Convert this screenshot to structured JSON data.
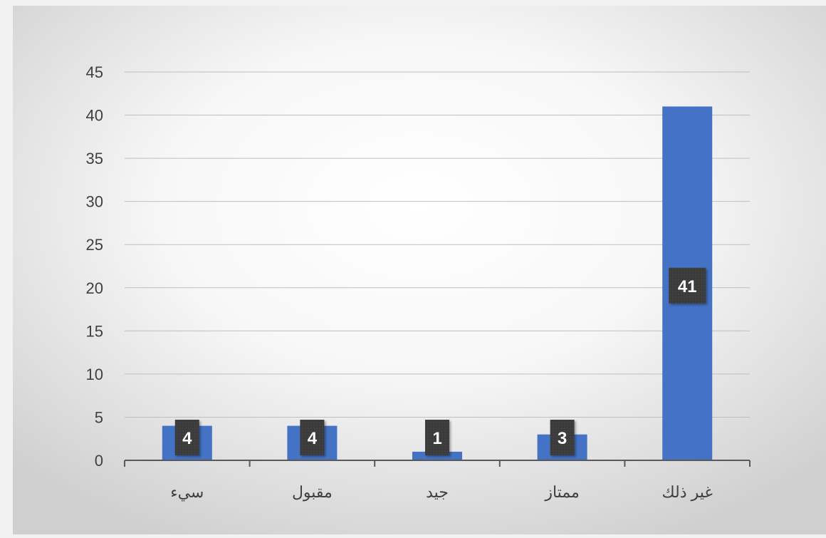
{
  "chart_data": {
    "type": "bar",
    "categories": [
      "سيء",
      "مقبول",
      "جيد",
      "ممتاز",
      "غير ذلك"
    ],
    "values": [
      4,
      4,
      1,
      3,
      41
    ],
    "title": "",
    "xlabel": "",
    "ylabel": "",
    "ylim": [
      0,
      45
    ],
    "yticks": [
      "0",
      "5",
      "10",
      "15",
      "20",
      "25",
      "30",
      "35",
      "40",
      "45"
    ],
    "data_labels": [
      "4",
      "4",
      "1",
      "3",
      "41"
    ],
    "grid": true,
    "legend": "none",
    "colors": {
      "bar": "#4472c4",
      "label_bg": "#3a3a3a",
      "label_text": "#ffffff",
      "grid": "#bfbfbf",
      "axis": "#595959",
      "text": "#404040"
    }
  }
}
